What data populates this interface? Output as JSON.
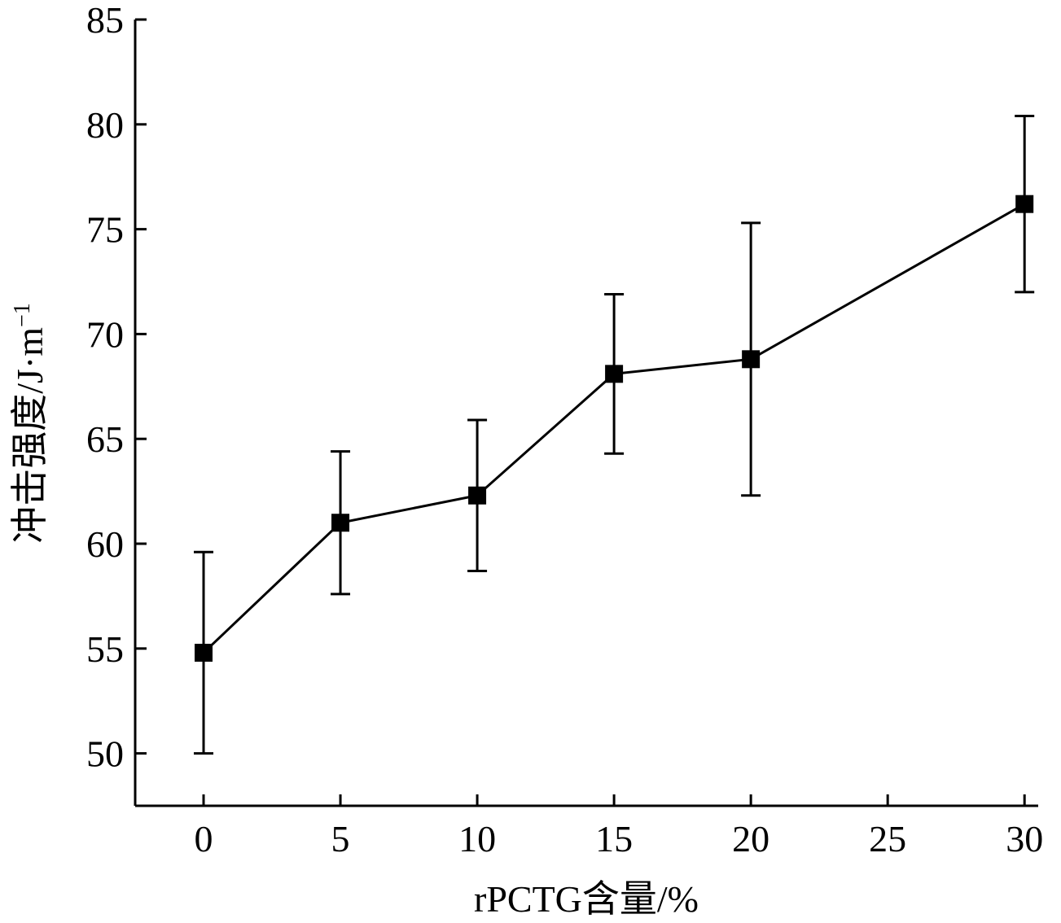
{
  "chart_data": {
    "type": "line",
    "xlabel": "rPCTG含量/%",
    "ylabel": "冲击强度/J·m",
    "ylabel_superscript": "−1",
    "xlim": [
      -2.5,
      30.5
    ],
    "ylim": [
      47.5,
      85
    ],
    "xticks": [
      0,
      5,
      10,
      15,
      20,
      25,
      30
    ],
    "yticks": [
      50,
      55,
      60,
      65,
      70,
      75,
      80,
      85
    ],
    "grid": false,
    "marker": "square",
    "color": "#000000",
    "series": [
      {
        "x": [
          0,
          5,
          10,
          15,
          20,
          30
        ],
        "y": [
          54.8,
          61.0,
          62.3,
          68.1,
          68.8,
          76.2
        ],
        "error": [
          4.8,
          3.4,
          3.6,
          3.8,
          6.5,
          4.2
        ]
      }
    ]
  }
}
